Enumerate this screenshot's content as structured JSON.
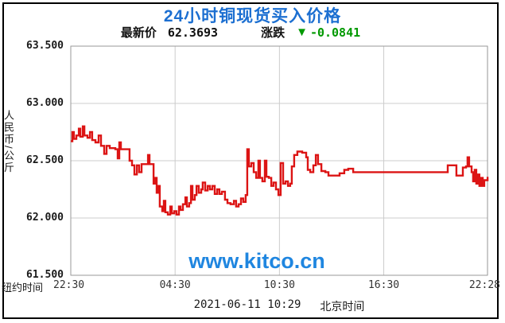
{
  "widget": {
    "title": "24小时铜现货买入价格",
    "subtitle": {
      "latest_label": "最新价",
      "latest_value": "62.3693",
      "change_label": "涨跌",
      "down_arrow": "▼",
      "change_value": "-0.0841"
    },
    "y_axis_title": "人民币/公斤",
    "x_axis_prefix": "纽约时间",
    "watermark": "www.kitco.cn",
    "footer": {
      "datetime": "2021-06-11 10:29",
      "timezone_label": "北京时间"
    },
    "colors": {
      "title_blue": "#1c6fd1",
      "watermark_blue": "#1f86e0",
      "change_green": "#009900",
      "line_red": "#dc1414",
      "grid_gray": "#cccccc",
      "plot_border_gray": "#999999",
      "frame_black": "#000000"
    }
  },
  "chart_data": {
    "type": "line",
    "title": "24小时铜现货买入价格",
    "ylabel": "人民币/公斤",
    "ylim": [
      61.5,
      63.5
    ],
    "x_unit": "hours since 22:30 New York time",
    "grid": true,
    "y_ticks": [
      {
        "v": 63.5,
        "label": "63.500"
      },
      {
        "v": 63.0,
        "label": "63.000"
      },
      {
        "v": 62.5,
        "label": "62.500"
      },
      {
        "v": 62.0,
        "label": "62.000"
      },
      {
        "v": 61.5,
        "label": "61.500"
      }
    ],
    "x_ticks": [
      {
        "h": 0,
        "label": "22:30"
      },
      {
        "h": 6,
        "label": "04:30"
      },
      {
        "h": 12,
        "label": "10:30"
      },
      {
        "h": 18,
        "label": "16:30"
      },
      {
        "h": 23.97,
        "label": "22:28"
      }
    ],
    "points": [
      [
        0,
        62.67
      ],
      [
        0.09,
        62.75
      ],
      [
        0.18,
        62.69
      ],
      [
        0.32,
        62.72
      ],
      [
        0.46,
        62.78
      ],
      [
        0.55,
        62.71
      ],
      [
        0.69,
        62.8
      ],
      [
        0.78,
        62.72
      ],
      [
        0.96,
        62.7
      ],
      [
        1.1,
        62.75
      ],
      [
        1.23,
        62.68
      ],
      [
        1.42,
        62.66
      ],
      [
        1.6,
        62.72
      ],
      [
        1.74,
        62.63
      ],
      [
        1.92,
        62.56
      ],
      [
        2.06,
        62.63
      ],
      [
        2.24,
        62.61
      ],
      [
        2.56,
        62.6
      ],
      [
        2.7,
        62.52
      ],
      [
        2.79,
        62.66
      ],
      [
        2.88,
        62.6
      ],
      [
        3.25,
        62.6
      ],
      [
        3.38,
        62.5
      ],
      [
        3.52,
        62.46
      ],
      [
        3.66,
        62.38
      ],
      [
        3.8,
        62.46
      ],
      [
        3.93,
        62.4
      ],
      [
        4.07,
        62.47
      ],
      [
        4.3,
        62.47
      ],
      [
        4.44,
        62.55
      ],
      [
        4.53,
        62.47
      ],
      [
        4.66,
        62.47
      ],
      [
        4.76,
        62.3
      ],
      [
        4.85,
        62.35
      ],
      [
        4.94,
        62.22
      ],
      [
        5.03,
        62.28
      ],
      [
        5.12,
        62.1
      ],
      [
        5.26,
        62.06
      ],
      [
        5.35,
        62.15
      ],
      [
        5.44,
        62.05
      ],
      [
        5.58,
        62.03
      ],
      [
        5.72,
        62.1
      ],
      [
        5.81,
        62.04
      ],
      [
        5.95,
        62.06
      ],
      [
        6.08,
        62.03
      ],
      [
        6.22,
        62.1
      ],
      [
        6.31,
        62.07
      ],
      [
        6.45,
        62.12
      ],
      [
        6.59,
        62.18
      ],
      [
        6.68,
        62.1
      ],
      [
        6.81,
        62.13
      ],
      [
        6.91,
        62.28
      ],
      [
        7,
        62.16
      ],
      [
        7.13,
        62.2
      ],
      [
        7.23,
        62.28
      ],
      [
        7.36,
        62.22
      ],
      [
        7.5,
        62.25
      ],
      [
        7.59,
        62.31
      ],
      [
        7.73,
        62.24
      ],
      [
        7.87,
        62.28
      ],
      [
        8,
        62.25
      ],
      [
        8.14,
        62.28
      ],
      [
        8.28,
        62.21
      ],
      [
        8.42,
        62.25
      ],
      [
        8.55,
        62.21
      ],
      [
        8.69,
        62.23
      ],
      [
        8.87,
        62.16
      ],
      [
        9.01,
        62.13
      ],
      [
        9.19,
        62.12
      ],
      [
        9.38,
        62.15
      ],
      [
        9.51,
        62.1
      ],
      [
        9.65,
        62.12
      ],
      [
        9.79,
        62.17
      ],
      [
        9.92,
        62.14
      ],
      [
        10.06,
        62.2
      ],
      [
        10.15,
        62.6
      ],
      [
        10.24,
        62.45
      ],
      [
        10.38,
        62.48
      ],
      [
        10.52,
        62.4
      ],
      [
        10.66,
        62.35
      ],
      [
        10.79,
        62.5
      ],
      [
        10.88,
        62.35
      ],
      [
        11.02,
        62.32
      ],
      [
        11.16,
        62.5
      ],
      [
        11.25,
        62.36
      ],
      [
        11.39,
        62.35
      ],
      [
        11.53,
        62.28
      ],
      [
        11.66,
        62.31
      ],
      [
        11.8,
        62.25
      ],
      [
        11.94,
        62.2
      ],
      [
        12.07,
        62.48
      ],
      [
        12.21,
        62.3
      ],
      [
        12.35,
        62.32
      ],
      [
        12.49,
        62.28
      ],
      [
        12.62,
        62.3
      ],
      [
        12.71,
        62.45
      ],
      [
        12.85,
        62.55
      ],
      [
        13.03,
        62.58
      ],
      [
        13.31,
        62.57
      ],
      [
        13.54,
        62.53
      ],
      [
        13.63,
        62.42
      ],
      [
        13.77,
        62.4
      ],
      [
        13.95,
        62.46
      ],
      [
        14.09,
        62.55
      ],
      [
        14.22,
        62.47
      ],
      [
        14.41,
        62.41
      ],
      [
        14.64,
        62.4
      ],
      [
        14.82,
        62.37
      ],
      [
        15.14,
        62.37
      ],
      [
        15.46,
        62.39
      ],
      [
        15.73,
        62.42
      ],
      [
        15.96,
        62.43
      ],
      [
        16.24,
        62.4
      ],
      [
        17.9,
        62.4
      ],
      [
        19.7,
        62.4
      ],
      [
        21.54,
        62.4
      ],
      [
        21.68,
        62.46
      ],
      [
        22,
        62.46
      ],
      [
        22.18,
        62.37
      ],
      [
        22.37,
        62.37
      ],
      [
        22.55,
        62.44
      ],
      [
        22.73,
        62.45
      ],
      [
        22.82,
        62.53
      ],
      [
        22.91,
        62.45
      ],
      [
        23.05,
        62.4
      ],
      [
        23.14,
        62.32
      ],
      [
        23.23,
        62.42
      ],
      [
        23.32,
        62.3
      ],
      [
        23.41,
        62.38
      ],
      [
        23.5,
        62.28
      ],
      [
        23.6,
        62.35
      ],
      [
        23.69,
        62.28
      ],
      [
        23.78,
        62.33
      ],
      [
        23.97,
        62.36
      ]
    ]
  }
}
